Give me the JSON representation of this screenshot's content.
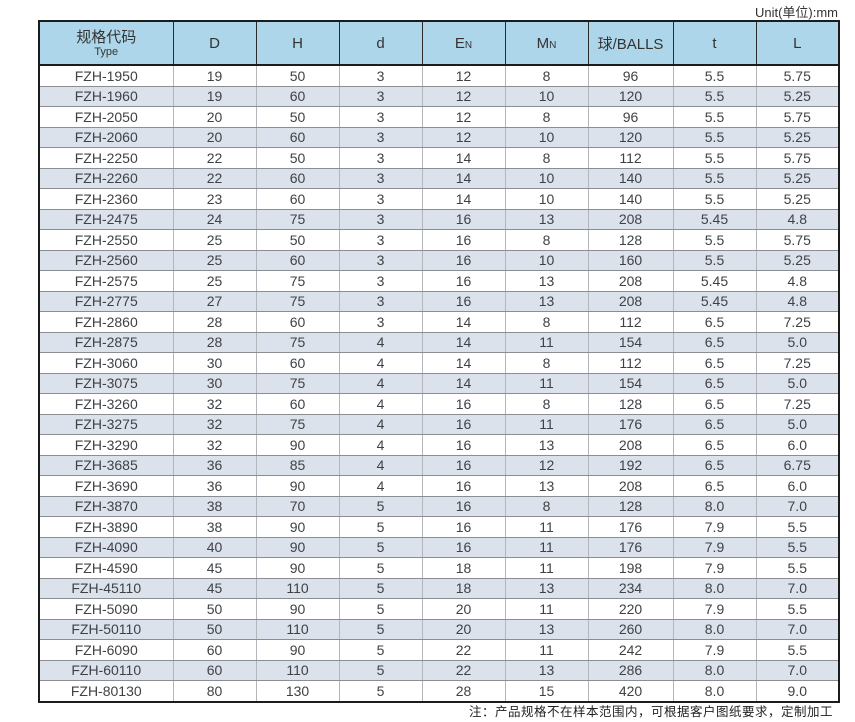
{
  "unit_label": "Unit(单位):mm",
  "colors": {
    "header_bg": "#aed6ea",
    "row_alt_bg": "#dbe2ec"
  },
  "table": {
    "columns": [
      {
        "id": "type",
        "label": "规格代码",
        "sublabel": "Type"
      },
      {
        "id": "D",
        "label": "D"
      },
      {
        "id": "H",
        "label": "H"
      },
      {
        "id": "d",
        "label": "d"
      },
      {
        "id": "EN",
        "label": "E",
        "sub": "N"
      },
      {
        "id": "MN",
        "label": "M",
        "sub": "N"
      },
      {
        "id": "balls",
        "label": "球/BALLS"
      },
      {
        "id": "t",
        "label": "t"
      },
      {
        "id": "L",
        "label": "L"
      }
    ],
    "rows": [
      [
        "FZH-1950",
        "19",
        "50",
        "3",
        "12",
        "8",
        "96",
        "5.5",
        "5.75"
      ],
      [
        "FZH-1960",
        "19",
        "60",
        "3",
        "12",
        "10",
        "120",
        "5.5",
        "5.25"
      ],
      [
        "FZH-2050",
        "20",
        "50",
        "3",
        "12",
        "8",
        "96",
        "5.5",
        "5.75"
      ],
      [
        "FZH-2060",
        "20",
        "60",
        "3",
        "12",
        "10",
        "120",
        "5.5",
        "5.25"
      ],
      [
        "FZH-2250",
        "22",
        "50",
        "3",
        "14",
        "8",
        "112",
        "5.5",
        "5.75"
      ],
      [
        "FZH-2260",
        "22",
        "60",
        "3",
        "14",
        "10",
        "140",
        "5.5",
        "5.25"
      ],
      [
        "FZH-2360",
        "23",
        "60",
        "3",
        "14",
        "10",
        "140",
        "5.5",
        "5.25"
      ],
      [
        "FZH-2475",
        "24",
        "75",
        "3",
        "16",
        "13",
        "208",
        "5.45",
        "4.8"
      ],
      [
        "FZH-2550",
        "25",
        "50",
        "3",
        "16",
        "8",
        "128",
        "5.5",
        "5.75"
      ],
      [
        "FZH-2560",
        "25",
        "60",
        "3",
        "16",
        "10",
        "160",
        "5.5",
        "5.25"
      ],
      [
        "FZH-2575",
        "25",
        "75",
        "3",
        "16",
        "13",
        "208",
        "5.45",
        "4.8"
      ],
      [
        "FZH-2775",
        "27",
        "75",
        "3",
        "16",
        "13",
        "208",
        "5.45",
        "4.8"
      ],
      [
        "FZH-2860",
        "28",
        "60",
        "3",
        "14",
        "8",
        "112",
        "6.5",
        "7.25"
      ],
      [
        "FZH-2875",
        "28",
        "75",
        "4",
        "14",
        "11",
        "154",
        "6.5",
        "5.0"
      ],
      [
        "FZH-3060",
        "30",
        "60",
        "4",
        "14",
        "8",
        "112",
        "6.5",
        "7.25"
      ],
      [
        "FZH-3075",
        "30",
        "75",
        "4",
        "14",
        "11",
        "154",
        "6.5",
        "5.0"
      ],
      [
        "FZH-3260",
        "32",
        "60",
        "4",
        "16",
        "8",
        "128",
        "6.5",
        "7.25"
      ],
      [
        "FZH-3275",
        "32",
        "75",
        "4",
        "16",
        "11",
        "176",
        "6.5",
        "5.0"
      ],
      [
        "FZH-3290",
        "32",
        "90",
        "4",
        "16",
        "13",
        "208",
        "6.5",
        "6.0"
      ],
      [
        "FZH-3685",
        "36",
        "85",
        "4",
        "16",
        "12",
        "192",
        "6.5",
        "6.75"
      ],
      [
        "FZH-3690",
        "36",
        "90",
        "4",
        "16",
        "13",
        "208",
        "6.5",
        "6.0"
      ],
      [
        "FZH-3870",
        "38",
        "70",
        "5",
        "16",
        "8",
        "128",
        "8.0",
        "7.0"
      ],
      [
        "FZH-3890",
        "38",
        "90",
        "5",
        "16",
        "11",
        "176",
        "7.9",
        "5.5"
      ],
      [
        "FZH-4090",
        "40",
        "90",
        "5",
        "16",
        "11",
        "176",
        "7.9",
        "5.5"
      ],
      [
        "FZH-4590",
        "45",
        "90",
        "5",
        "18",
        "11",
        "198",
        "7.9",
        "5.5"
      ],
      [
        "FZH-45110",
        "45",
        "110",
        "5",
        "18",
        "13",
        "234",
        "8.0",
        "7.0"
      ],
      [
        "FZH-5090",
        "50",
        "90",
        "5",
        "20",
        "11",
        "220",
        "7.9",
        "5.5"
      ],
      [
        "FZH-50110",
        "50",
        "110",
        "5",
        "20",
        "13",
        "260",
        "8.0",
        "7.0"
      ],
      [
        "FZH-6090",
        "60",
        "90",
        "5",
        "22",
        "11",
        "242",
        "7.9",
        "5.5"
      ],
      [
        "FZH-60110",
        "60",
        "110",
        "5",
        "22",
        "13",
        "286",
        "8.0",
        "7.0"
      ],
      [
        "FZH-80130",
        "80",
        "130",
        "5",
        "28",
        "15",
        "420",
        "8.0",
        "9.0"
      ]
    ]
  },
  "note": "注：产品规格不在样本范围内，可根据客户图纸要求，定制加工"
}
